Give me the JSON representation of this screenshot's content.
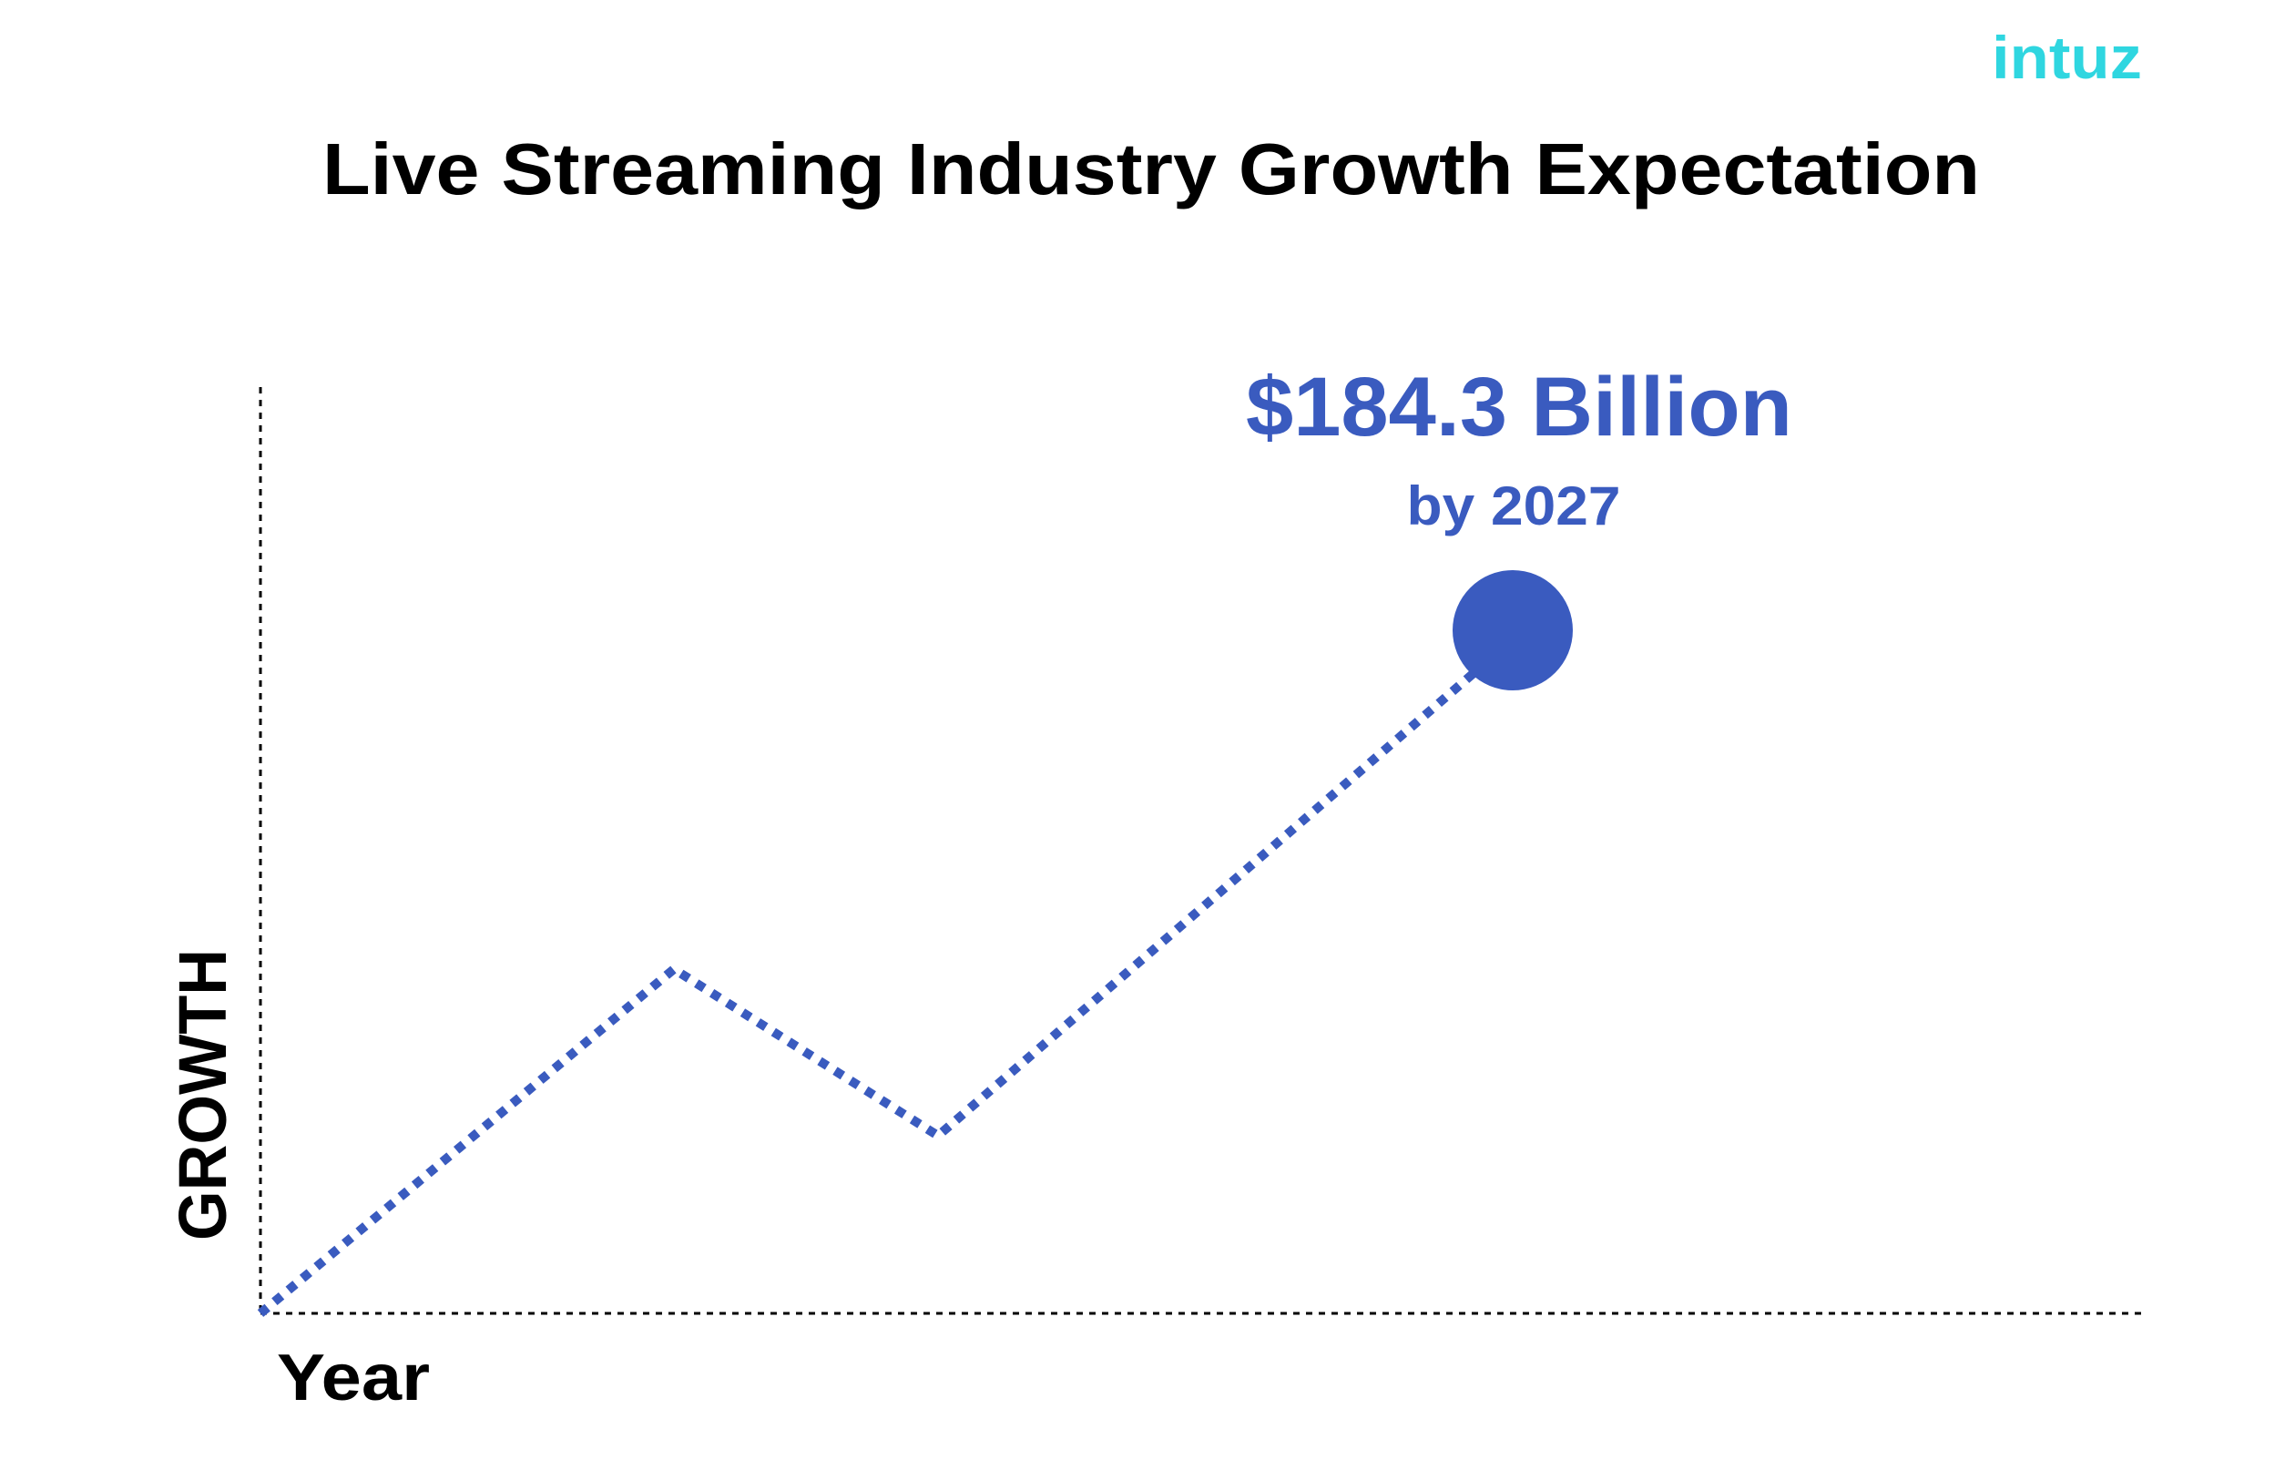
{
  "logo": "intuz",
  "title": "Live Streaming Industry Growth Expectation",
  "annotation": {
    "value": "$184.3 Billion",
    "period": "by 2027"
  },
  "axes": {
    "y_label": "GROWTH",
    "x_label": "Year"
  }
}
